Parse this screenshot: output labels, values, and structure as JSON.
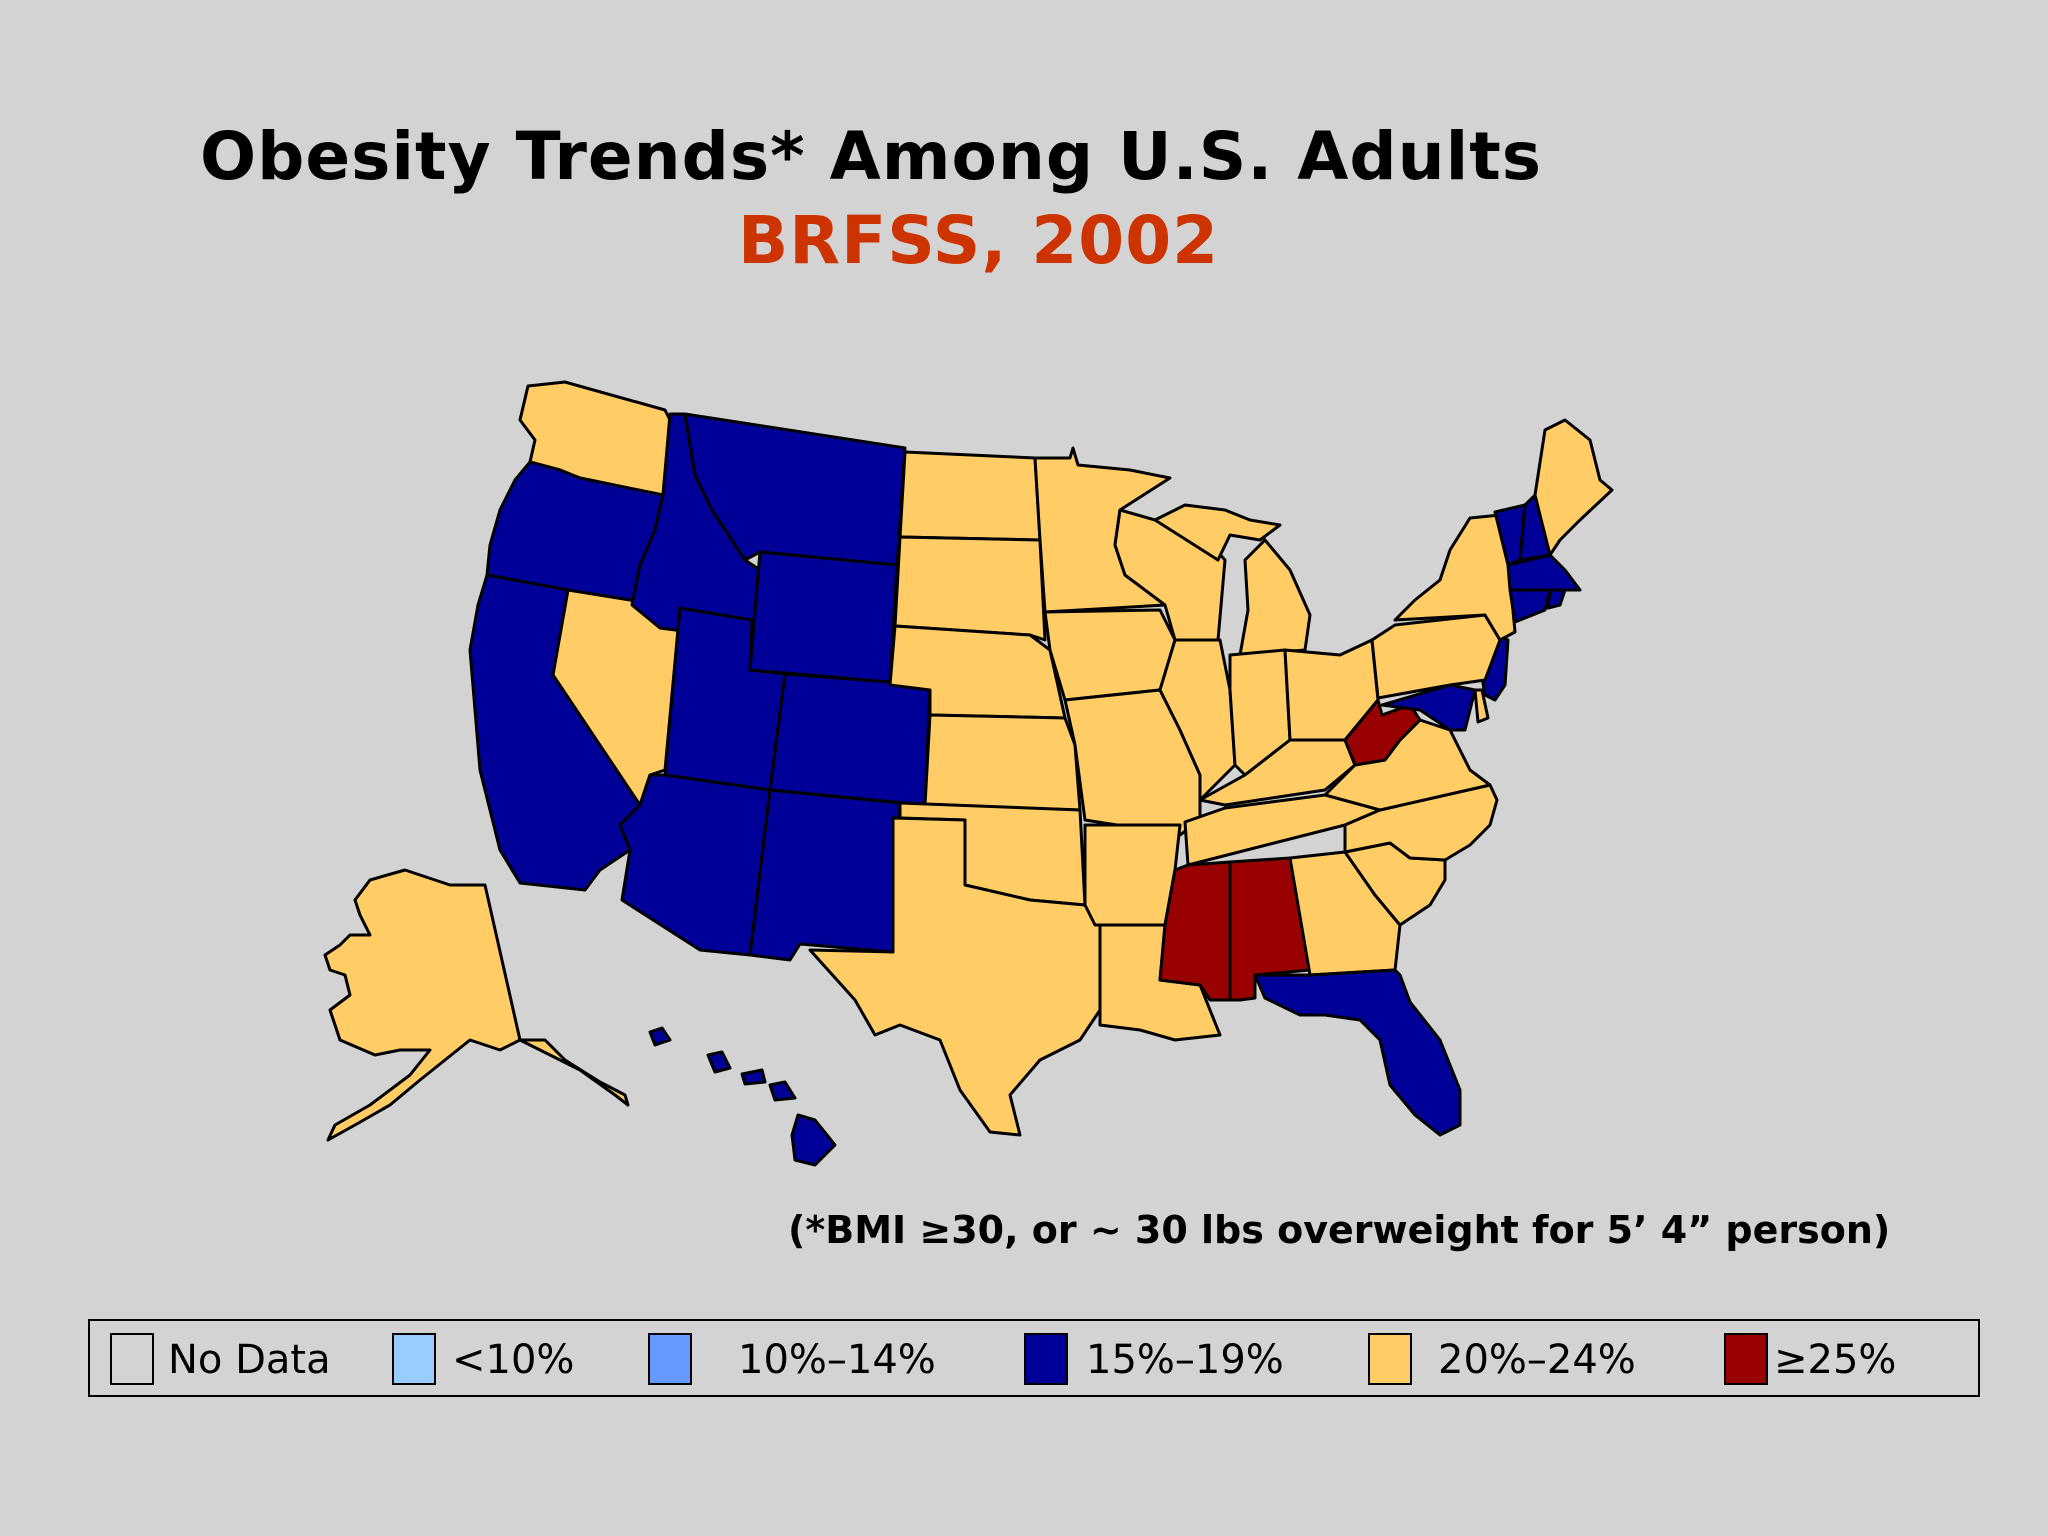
{
  "header": {
    "title": "Obesity Trends* Among U.S. Adults",
    "subtitle": "BRFSS, 2002"
  },
  "footnote": "(*BMI ≥30, or ~ 30 lbs overweight for 5’ 4” person)",
  "colors": {
    "no_data": "#d3d3d3",
    "lt10": "#99ccff",
    "10_14": "#6699ff",
    "15_19": "#000099",
    "20_24": "#ffcc66",
    "ge25": "#990000"
  },
  "legend": [
    {
      "key": "no_data",
      "label": "No Data"
    },
    {
      "key": "lt10",
      "label": "<10%"
    },
    {
      "key": "10_14",
      "label": "10%–14%"
    },
    {
      "key": "15_19",
      "label": "15%–19%"
    },
    {
      "key": "20_24",
      "label": "20%–24%"
    },
    {
      "key": "ge25",
      "label": "≥25%"
    }
  ],
  "states": {
    "WA": "20_24",
    "OR": "15_19",
    "CA": "15_19",
    "NV": "20_24",
    "ID": "15_19",
    "MT": "15_19",
    "WY": "15_19",
    "UT": "15_19",
    "CO": "15_19",
    "AZ": "15_19",
    "NM": "15_19",
    "ND": "20_24",
    "SD": "20_24",
    "NE": "20_24",
    "KS": "20_24",
    "OK": "20_24",
    "TX": "20_24",
    "MN": "20_24",
    "IA": "20_24",
    "MO": "20_24",
    "AR": "20_24",
    "LA": "20_24",
    "WI": "20_24",
    "IL": "20_24",
    "MI": "20_24",
    "IN": "20_24",
    "OH": "20_24",
    "KY": "20_24",
    "TN": "20_24",
    "MS": "ge25",
    "AL": "ge25",
    "GA": "20_24",
    "FL": "15_19",
    "SC": "20_24",
    "NC": "20_24",
    "VA": "20_24",
    "WV": "ge25",
    "MD": "15_19",
    "DE": "20_24",
    "NJ": "15_19",
    "PA": "20_24",
    "NY": "20_24",
    "VT": "15_19",
    "NH": "15_19",
    "ME": "20_24",
    "MA": "15_19",
    "CT": "15_19",
    "RI": "15_19",
    "AK": "20_24",
    "HI": "15_19"
  }
}
